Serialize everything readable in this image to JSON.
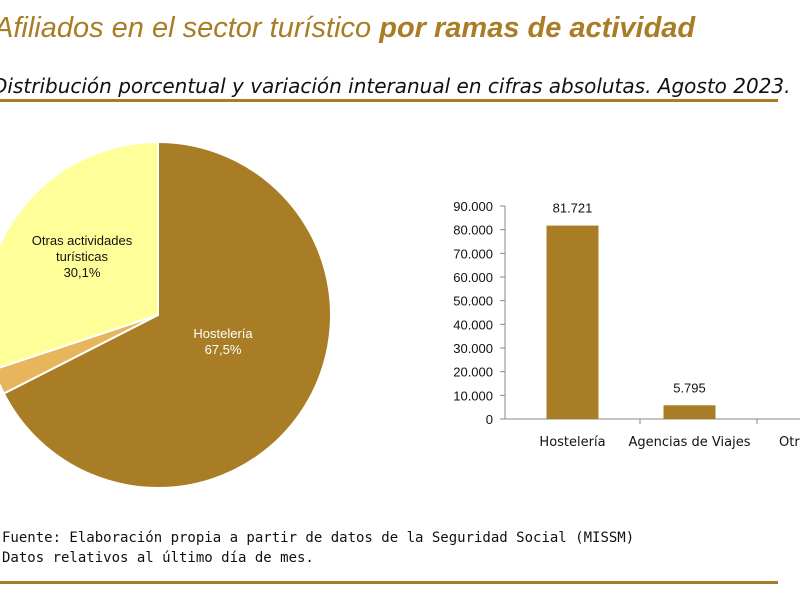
{
  "header": {
    "title_regular": "Afiliados en el sector turístico ",
    "title_bold": "por ramas de actividad",
    "subtitle": "Distribución porcentual y variación interanual en cifras absolutas. Agosto 2023."
  },
  "footer": {
    "source": "Fuente: Elaboración propia a partir de datos de la Seguridad Social (MISSM)",
    "note": "Datos relativos al último día de mes."
  },
  "colors": {
    "accent": "#a97d25",
    "hosteleria": "#a97d25",
    "otras": "#ffff99",
    "agencias": "#e6b55c"
  },
  "chart_data": [
    {
      "type": "pie",
      "slices": [
        {
          "label": "Hostelería",
          "value": 67.5,
          "value_label": "67,5%",
          "color": "#a97d25",
          "text_color": "#ffffff"
        },
        {
          "label": "Agencias de Viajes",
          "value": 2.4,
          "value_label": "",
          "color": "#e6b55c",
          "text_color": "#111111"
        },
        {
          "label": "Otras actividades turísticas",
          "value": 30.1,
          "value_label": "30,1%",
          "color": "#ffff99",
          "text_color": "#111111"
        }
      ],
      "labels_shown": [
        {
          "lines": [
            "Hostelería",
            "67,5%"
          ]
        },
        {
          "lines": [
            "Otras actividades",
            "turísticas",
            "30,1%"
          ]
        }
      ]
    },
    {
      "type": "bar",
      "categories": [
        "Hostelería",
        "Agencias de Viajes",
        "Otras actividades turísticas"
      ],
      "category_labels_visible": [
        "Hostelería",
        "Agencias de Viajes",
        "Otr"
      ],
      "values": [
        81721,
        5795,
        null
      ],
      "value_labels": [
        "81.721",
        "5.795",
        ""
      ],
      "ylim": [
        0,
        90000
      ],
      "yticks": [
        0,
        10000,
        20000,
        30000,
        40000,
        50000,
        60000,
        70000,
        80000,
        90000
      ],
      "ytick_labels": [
        "0",
        "10.000",
        "20.000",
        "30.000",
        "40.000",
        "50.000",
        "60.000",
        "70.000",
        "80.000",
        "90.000"
      ],
      "color": "#a97d25",
      "grid": false
    }
  ]
}
